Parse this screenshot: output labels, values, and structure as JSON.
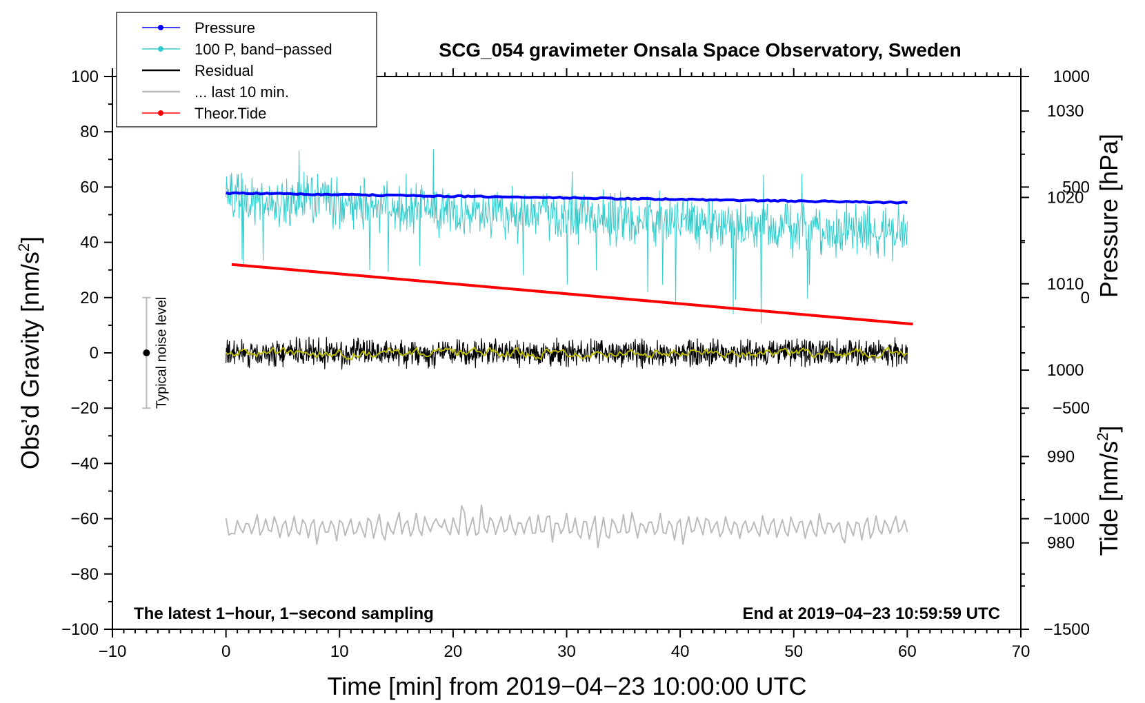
{
  "chart_data": {
    "type": "line",
    "title": "SCG_054 gravimeter Onsala Space Observatory, Sweden",
    "xlabel": "Time [min] from 2019−04−23 10:00:00 UTC",
    "ylabel_left": "Obs’d Gravity [nm/s",
    "ylabel_left_sup": "2",
    "ylabel_left_end": "]",
    "ylabel_right_top": "Pressure [hPa]",
    "ylabel_right_bottom": "Tide [nm/s",
    "ylabel_right_bottom_sup": "2",
    "ylabel_right_bottom_end": "]",
    "xlim": [
      -10,
      70
    ],
    "ylim_left": [
      -100,
      100
    ],
    "pressure_axis_range": [
      970,
      1034
    ],
    "tide_axis_range": [
      -1500,
      1000
    ],
    "x_ticks": [
      -10,
      0,
      10,
      20,
      30,
      40,
      50,
      60,
      70
    ],
    "x_tick_labels": [
      "−10",
      "0",
      "10",
      "20",
      "30",
      "40",
      "50",
      "60",
      "70"
    ],
    "left_ticks": [
      -100,
      -80,
      -60,
      -40,
      -20,
      0,
      20,
      40,
      60,
      80,
      100
    ],
    "left_tick_labels": [
      "−100",
      "−80",
      "−60",
      "−40",
      "−20",
      "0",
      "20",
      "40",
      "60",
      "80",
      "100"
    ],
    "pressure_ticks": [
      980,
      990,
      1000,
      1010,
      1020,
      1030
    ],
    "pressure_tick_labels": [
      "980",
      "990",
      "1000",
      "1010",
      "1020",
      "1030"
    ],
    "tide_ticks": [
      -1500,
      -1000,
      -500,
      0,
      500,
      1000
    ],
    "tide_tick_labels": [
      "−1500",
      "−1000",
      "−500",
      "0",
      "500",
      "1000"
    ],
    "legend": [
      {
        "name": "Pressure",
        "color": "#0000ff",
        "marker": true
      },
      {
        "name": "100 P, band−passed",
        "color": "#33cccc",
        "marker": true
      },
      {
        "name": "Residual",
        "color": "#000000",
        "marker": false
      },
      {
        "name": "... last 10 min.",
        "color": "#bbbbbb",
        "marker": false
      },
      {
        "name": "Theor.Tide",
        "color": "#ff0000",
        "marker": true
      }
    ],
    "legend_position": "top-left",
    "noise_label": "Typical noise level",
    "noise_bar": {
      "x": -7,
      "center": 0,
      "low": -20,
      "high": 20
    },
    "series": [
      {
        "name": "Pressure",
        "color": "#0000ff",
        "x_start": 0,
        "x_end": 60,
        "start": 1020.5,
        "end": 1019.4,
        "axis": "pressure"
      },
      {
        "name": "100 P, band−passed",
        "color": "#33cccc",
        "x_start": 0,
        "x_end": 60,
        "start": 56,
        "end": 43,
        "amplitude": 8,
        "axis": "left"
      },
      {
        "name": "Residual",
        "color": "#000000",
        "x_start": 0,
        "x_end": 60,
        "mean": 0,
        "amplitude": 5,
        "axis": "left"
      },
      {
        "name": "Residual smoothed",
        "color": "#b8b800",
        "x_start": 0,
        "x_end": 60,
        "mean": 0,
        "amplitude": 1.2,
        "axis": "left"
      },
      {
        "name": "... last 10 min.",
        "color": "#bbbbbb",
        "x_start": 0,
        "x_end": 60,
        "mean": -63,
        "amplitude": 3.5,
        "axis": "left"
      },
      {
        "name": "Theor.Tide",
        "color": "#ff0000",
        "x_start": 0.5,
        "x_end": 60.5,
        "start": 150,
        "end": -120,
        "axis": "tide"
      }
    ],
    "footer_left": "The latest 1−hour, 1−second sampling",
    "footer_right": "End at 2019−04−23 10:59:59 UTC"
  }
}
